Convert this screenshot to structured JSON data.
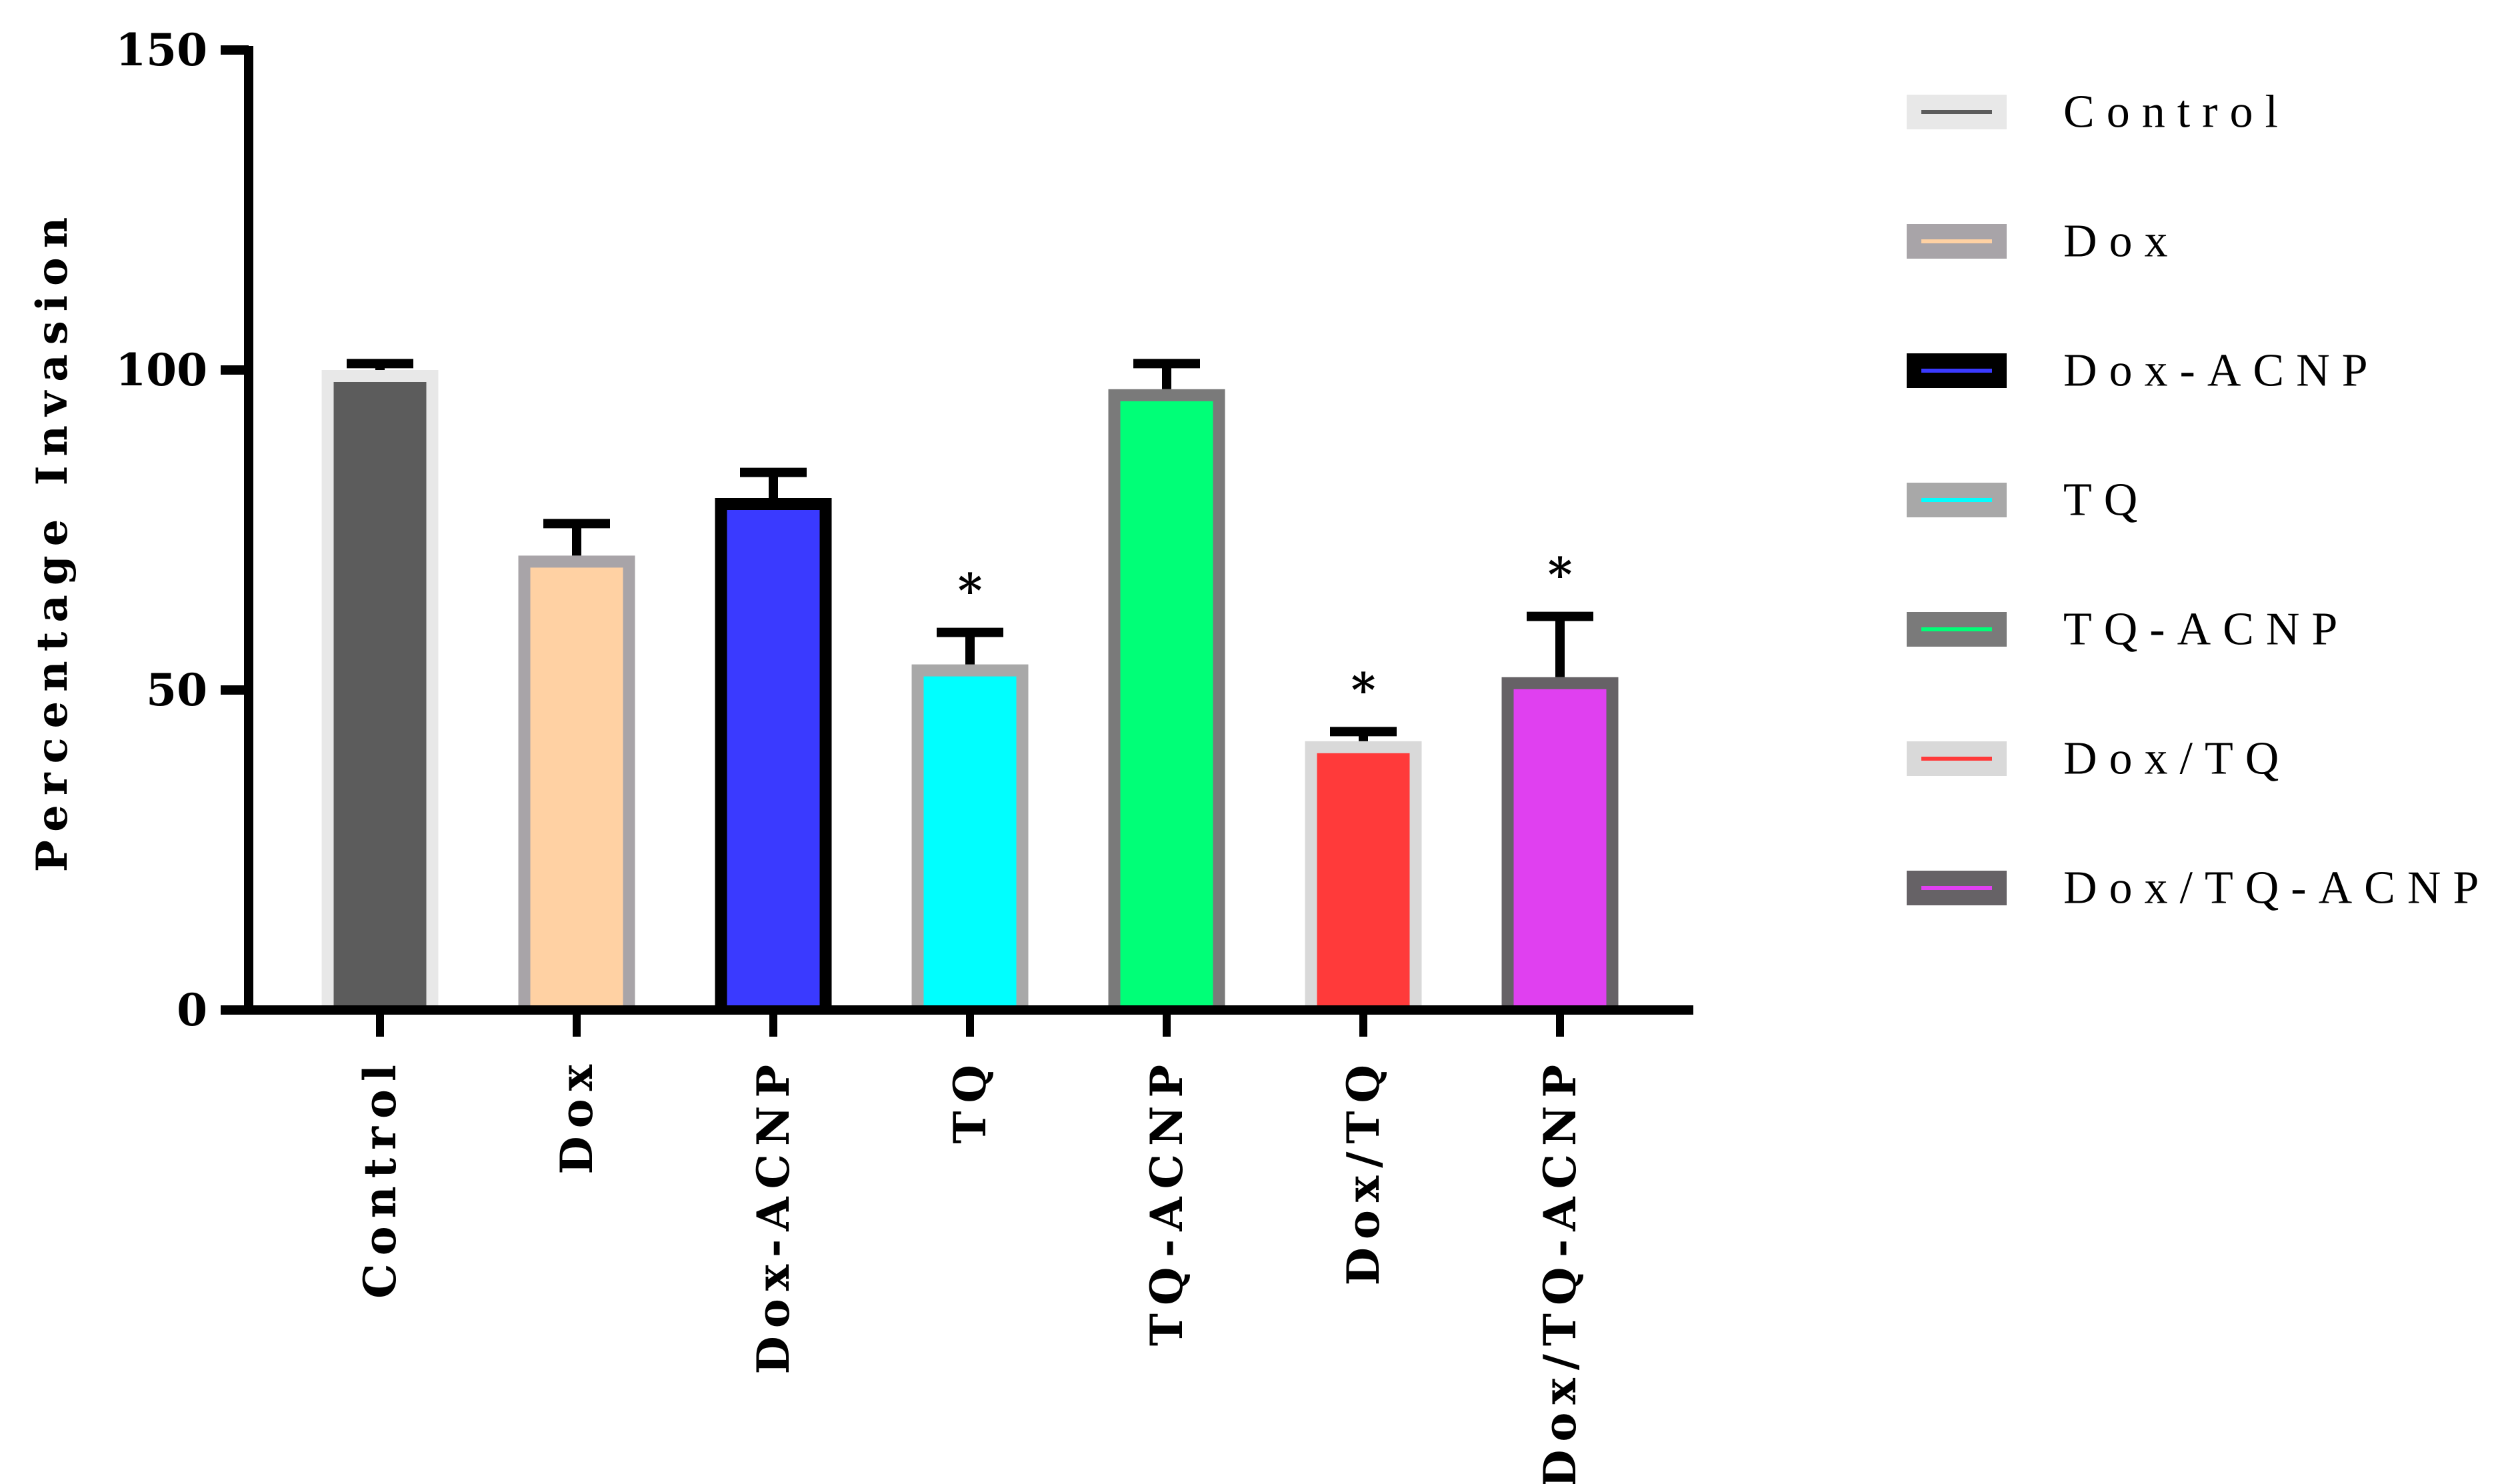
{
  "chart_data": {
    "type": "bar",
    "title": "",
    "xlabel": "",
    "ylabel": "Percentage Invasion",
    "ylim": [
      0,
      150
    ],
    "yticks": [
      0,
      50,
      100,
      150
    ],
    "grid": false,
    "legend_position": "right",
    "categories": [
      "Control",
      "Dox",
      "Dox-ACNP",
      "TQ",
      "TQ-ACNP",
      "Dox/TQ",
      "Dox/TQ-ACNP"
    ],
    "values": [
      100,
      71,
      80,
      54,
      97,
      42,
      52
    ],
    "errors": [
      1,
      5,
      4,
      5,
      4,
      1.5,
      9.5
    ],
    "significance": [
      "",
      "",
      "",
      "*",
      "",
      "*",
      "*"
    ],
    "fill_colors": [
      "#5c5c5c",
      "#ffd1a3",
      "#3a3aff",
      "#00ffff",
      "#00ff77",
      "#ff3a3a",
      "#e040f0"
    ],
    "border_colors": [
      "#e8e8e8",
      "#a8a4a8",
      "#000000",
      "#a8a8a8",
      "#7a7a7a",
      "#d9d9d9",
      "#666266"
    ],
    "legend": [
      "Control",
      "Dox",
      "Dox-ACNP",
      "TQ",
      "TQ-ACNP",
      "Dox/TQ",
      "Dox/TQ-ACNP"
    ]
  }
}
